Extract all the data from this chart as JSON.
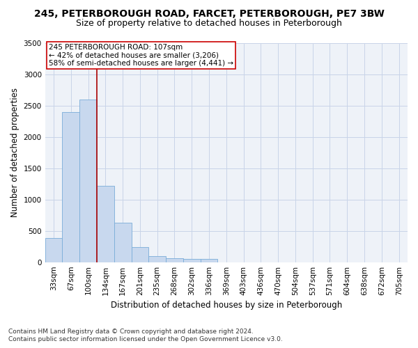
{
  "title_line1": "245, PETERBOROUGH ROAD, FARCET, PETERBOROUGH, PE7 3BW",
  "title_line2": "Size of property relative to detached houses in Peterborough",
  "xlabel": "Distribution of detached houses by size in Peterborough",
  "ylabel": "Number of detached properties",
  "footnote1": "Contains HM Land Registry data © Crown copyright and database right 2024.",
  "footnote2": "Contains public sector information licensed under the Open Government Licence v3.0.",
  "annotation_line1": "245 PETERBOROUGH ROAD: 107sqm",
  "annotation_line2": "← 42% of detached houses are smaller (3,206)",
  "annotation_line3": "58% of semi-detached houses are larger (4,441) →",
  "bar_labels": [
    "33sqm",
    "67sqm",
    "100sqm",
    "134sqm",
    "167sqm",
    "201sqm",
    "235sqm",
    "268sqm",
    "302sqm",
    "336sqm",
    "369sqm",
    "403sqm",
    "436sqm",
    "470sqm",
    "504sqm",
    "537sqm",
    "571sqm",
    "604sqm",
    "638sqm",
    "672sqm",
    "705sqm"
  ],
  "bar_values": [
    390,
    2400,
    2600,
    1220,
    630,
    245,
    100,
    65,
    55,
    50,
    0,
    0,
    0,
    0,
    0,
    0,
    0,
    0,
    0,
    0,
    0
  ],
  "bar_color": "#c8d8ee",
  "bar_edge_color": "#7aadd8",
  "vline_x": 2.5,
  "vline_color": "#aa0000",
  "ylim": [
    0,
    3500
  ],
  "yticks": [
    0,
    500,
    1000,
    1500,
    2000,
    2500,
    3000,
    3500
  ],
  "grid_color": "#c8d4e8",
  "background_color": "#eef2f8",
  "annotation_box_color": "#ffffff",
  "annotation_box_edge": "#cc0000",
  "title_fontsize": 10,
  "subtitle_fontsize": 9,
  "axis_label_fontsize": 8.5,
  "tick_fontsize": 7.5,
  "annotation_fontsize": 7.5,
  "footnote_fontsize": 6.5
}
